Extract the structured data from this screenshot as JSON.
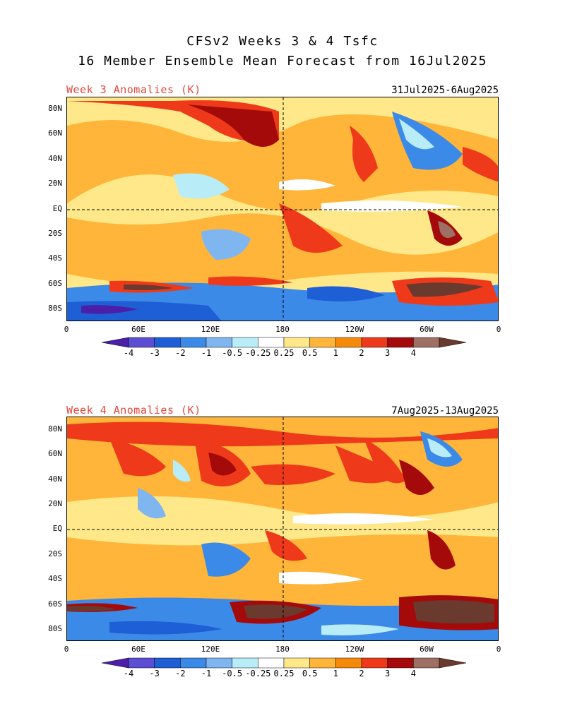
{
  "header": {
    "title_line1": "CFSv2 Weeks 3 & 4 Tsfc",
    "title_line2": "16 Member Ensemble Mean Forecast from 16Jul2025"
  },
  "panels": [
    {
      "label": "Week 3 Anomalies (K)",
      "date_range": "31Jul2025-6Aug2025",
      "lat_ticks": [
        "80N",
        "60N",
        "40N",
        "20N",
        "EQ",
        "20S",
        "40S",
        "60S",
        "80S"
      ],
      "lon_ticks": [
        "0",
        "60E",
        "120E",
        "180",
        "120W",
        "60W",
        "0"
      ]
    },
    {
      "label": "Week 4 Anomalies (K)",
      "date_range": "7Aug2025-13Aug2025",
      "lat_ticks": [
        "80N",
        "60N",
        "40N",
        "20N",
        "EQ",
        "20S",
        "40S",
        "60S",
        "80S"
      ],
      "lon_ticks": [
        "0",
        "60E",
        "120E",
        "180",
        "120W",
        "60W",
        "0"
      ]
    }
  ],
  "colorbar": {
    "labels": [
      "-4",
      "-3",
      "-2",
      "-1",
      "-0.5",
      "-0.25",
      "0.25",
      "0.5",
      "1",
      "2",
      "3",
      "4"
    ],
    "colors": [
      "#4b1fa8",
      "#5a4fd2",
      "#1e5fd6",
      "#3c8ae8",
      "#7fb6f0",
      "#b8ecf7",
      "#ffffff",
      "#ffe88a",
      "#ffb53a",
      "#f58a0a",
      "#ee3a1a",
      "#a50a0a",
      "#9e7064",
      "#6b3a2e"
    ]
  },
  "colors": {
    "title_red": "#e4473b",
    "deep_red": "#a50a0a",
    "red": "#ee3a1a",
    "orange": "#f58a0a",
    "light_orange": "#ffb53a",
    "yellow": "#ffe88a",
    "light_blue": "#b8ecf7",
    "blue": "#3c8ae8",
    "dark_blue": "#1e5fd6",
    "purple": "#4b1fa8",
    "brown": "#6b3a2e"
  }
}
